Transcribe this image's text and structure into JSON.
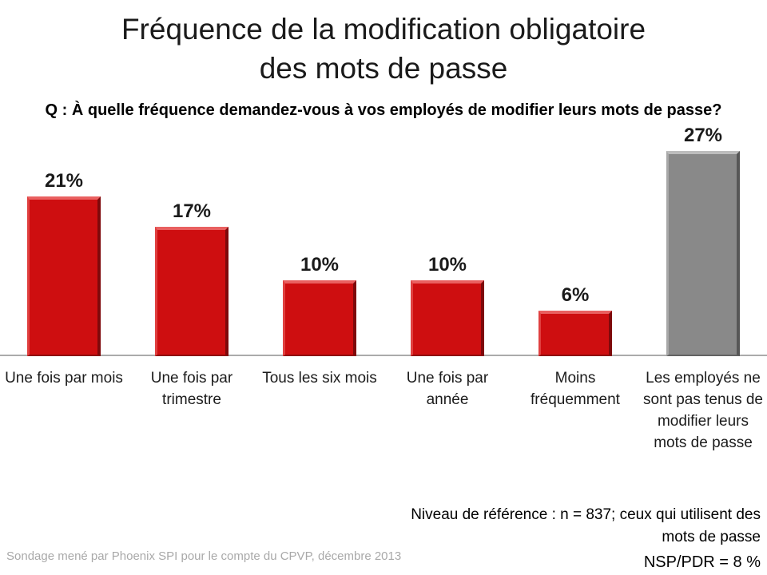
{
  "title": {
    "line1": "Fréquence de la modification obligatoire",
    "line2": "des mots de passe"
  },
  "question": "Q : À quelle fréquence demandez-vous à vos employés de modifier leurs mots de passe?",
  "chart_data": {
    "type": "bar",
    "categories": [
      "Une fois par mois",
      "Une fois par trimestre",
      "Tous les six mois",
      "Une fois par année",
      "Moins fréquemment",
      "Les employés ne sont pas tenus de modifier leurs mots de passe"
    ],
    "values": [
      21,
      17,
      10,
      10,
      6,
      27
    ],
    "value_labels": [
      "21%",
      "17%",
      "10%",
      "10%",
      "6%",
      "27%"
    ],
    "bar_colors": [
      "red",
      "red",
      "red",
      "red",
      "red",
      "gray"
    ],
    "ylim": [
      0,
      30
    ],
    "grid": false,
    "legend": false,
    "xlabel": "",
    "ylabel": ""
  },
  "colors": {
    "axis_line": "#ababab",
    "footer_text": "#a9a9a9",
    "series": {
      "red": {
        "fill": "#ce0e10",
        "top": "#e96060",
        "left": "#e04040",
        "right": "#7e090b",
        "bottom": "#8f0a0c"
      },
      "gray": {
        "fill": "#898989",
        "top": "#bdbdbd",
        "left": "#a8a8a8",
        "right": "#575757",
        "bottom": "#626262"
      }
    }
  },
  "reference_note": {
    "line": "Niveau de référence  : n = 837; ceux qui utilisent des mots de passe",
    "nsp": "NSP/PDR = 8 %"
  },
  "footer": "Sondage mené par Phoenix SPI pour le compte du CPVP, décembre 2013"
}
